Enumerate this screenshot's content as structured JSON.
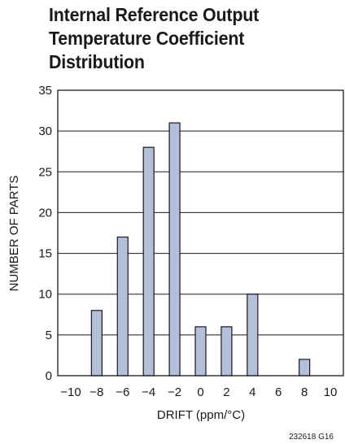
{
  "chart_data": {
    "type": "bar",
    "title_lines": [
      "Internal Reference Output",
      "Temperature Coefficient",
      "Distribution"
    ],
    "xlabel": "DRIFT (ppm/°C)",
    "ylabel": "NUMBER OF PARTS",
    "x": [
      -8,
      -6,
      -4,
      -2,
      0,
      2,
      4,
      8
    ],
    "values": [
      8,
      17,
      28,
      31,
      6,
      6,
      10,
      2
    ],
    "xlim": [
      -11,
      11
    ],
    "ylim": [
      0,
      35
    ],
    "x_ticks": [
      -10,
      -8,
      -6,
      -4,
      -2,
      0,
      2,
      4,
      6,
      8,
      10
    ],
    "x_tick_labels": [
      "−10",
      "−8",
      "−6",
      "−4",
      "−2",
      "0",
      "2",
      "4",
      "6",
      "8",
      "10"
    ],
    "y_ticks": [
      0,
      5,
      10,
      15,
      20,
      25,
      30,
      35
    ],
    "grid": "horizontal",
    "bar_color": "#b4bfdc",
    "bar_edge_color": "#1a1a1a",
    "footnote": "232618 G16"
  }
}
